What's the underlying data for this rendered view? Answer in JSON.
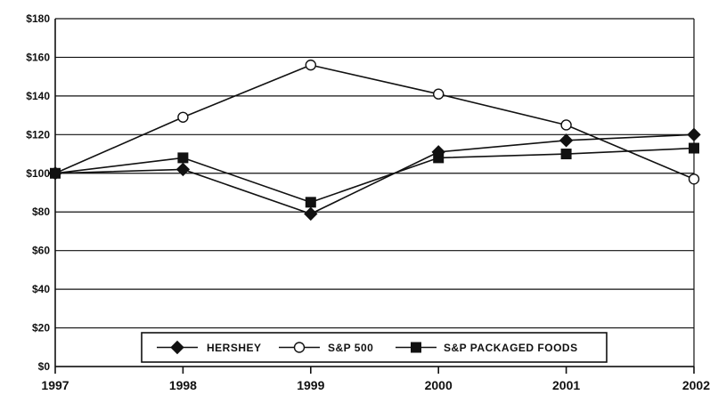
{
  "chart_data": {
    "type": "line",
    "title": "",
    "xlabel": "",
    "ylabel": "",
    "x": [
      "1997",
      "1998",
      "1999",
      "2000",
      "2001",
      "2002"
    ],
    "ylim": [
      0,
      180
    ],
    "yticks": [
      0,
      20,
      40,
      60,
      80,
      100,
      120,
      140,
      160,
      180
    ],
    "ytick_labels": [
      "$0",
      "$20",
      "$40",
      "$60",
      "$80",
      "$100",
      "$120",
      "$140",
      "$160",
      "$180"
    ],
    "grid": "horizontal",
    "legend_position": "bottom-center",
    "series": [
      {
        "name": "HERSHEY",
        "marker": "filled-diamond",
        "values": [
          100,
          102,
          79,
          111,
          117,
          120
        ]
      },
      {
        "name": "S&P 500",
        "marker": "open-circle",
        "values": [
          100,
          129,
          156,
          141,
          125,
          97
        ]
      },
      {
        "name": "S&P PACKAGED FOODS",
        "marker": "filled-square",
        "values": [
          100,
          108,
          85,
          108,
          110,
          113
        ]
      }
    ],
    "colors": {
      "line": "#111111",
      "grid": "#111111",
      "background": "#ffffff"
    }
  }
}
